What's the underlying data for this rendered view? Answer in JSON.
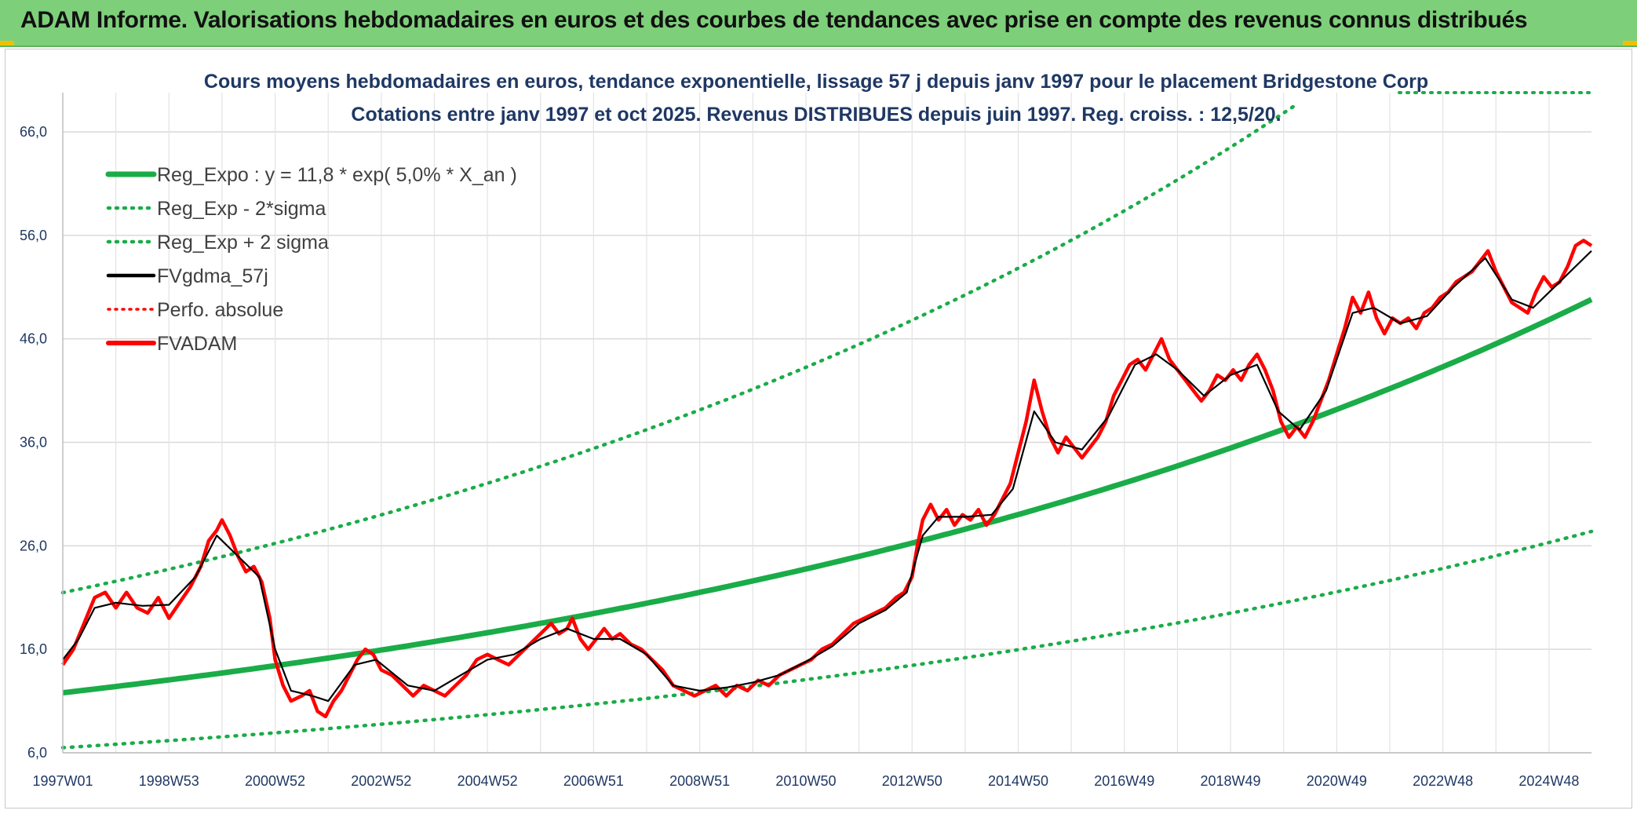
{
  "banner": {
    "title": "ADAM Informe. Valorisations hebdomadaires en euros et des courbes de tendances avec prise en compte des revenus connus distribués"
  },
  "colors": {
    "banner_bg": "#7ecf7a",
    "reg_green": "#1aac48",
    "fvadam_red": "#ff0000",
    "fvgdma_black": "#000000",
    "title_blue": "#1f3864"
  },
  "chart_data": {
    "type": "line",
    "title": "Cours moyens hebdomadaires en euros, tendance exponentielle, lissage 57 j depuis janv 1997 pour le placement Bridgestone Corp",
    "subtitle": "Cotations entre janv 1997 et oct 2025. Revenus DISTRIBUES depuis juin 1997. Reg. croiss. : 12,5/20.",
    "xlabel": "",
    "ylabel": "",
    "ylim": [
      6,
      66
    ],
    "xlim": [
      1997.0,
      2025.8
    ],
    "yticks": [
      "6,0",
      "16,0",
      "26,0",
      "36,0",
      "46,0",
      "56,0",
      "66,0"
    ],
    "xticks": [
      "1997W01",
      "1998W53",
      "2000W52",
      "2002W52",
      "2004W52",
      "2006W51",
      "2008W51",
      "2010W50",
      "2012W50",
      "2014W50",
      "2016W49",
      "2018W49",
      "2020W49",
      "2022W48",
      "2024W48"
    ],
    "grid": true,
    "legend_position": "top-left",
    "regression": {
      "a": 11.8,
      "b": 0.05,
      "minus_2_sigma_factor": 0.55,
      "plus_2_sigma_factor": 1.82
    },
    "series": [
      {
        "name": "Reg_Expo : y = 11,8 * exp( 5,0% *  X_an )",
        "style": "solid-thick",
        "color": "#1aac48"
      },
      {
        "name": "Reg_Exp - 2*sigma",
        "style": "dotted",
        "color": "#1aac48"
      },
      {
        "name": "Reg_Exp + 2 sigma",
        "style": "dotted",
        "color": "#1aac48"
      },
      {
        "name": "FVgdma_57j",
        "style": "solid",
        "color": "#000000"
      },
      {
        "name": "Perfo. absolue",
        "style": "dotted",
        "color": "#ff0000"
      },
      {
        "name": "FVADAM",
        "style": "solid-thick",
        "color": "#ff0000"
      }
    ],
    "fvadam_points": [
      [
        1997.0,
        14.5
      ],
      [
        1997.2,
        16.0
      ],
      [
        1997.4,
        18.5
      ],
      [
        1997.6,
        21.0
      ],
      [
        1997.8,
        21.5
      ],
      [
        1998.0,
        20.0
      ],
      [
        1998.2,
        21.5
      ],
      [
        1998.4,
        20.0
      ],
      [
        1998.6,
        19.5
      ],
      [
        1998.8,
        21.0
      ],
      [
        1999.0,
        19.0
      ],
      [
        1999.2,
        20.5
      ],
      [
        1999.4,
        22.0
      ],
      [
        1999.6,
        24.0
      ],
      [
        1999.75,
        26.5
      ],
      [
        1999.9,
        27.5
      ],
      [
        2000.0,
        28.5
      ],
      [
        2000.15,
        27.0
      ],
      [
        2000.3,
        25.0
      ],
      [
        2000.45,
        23.5
      ],
      [
        2000.6,
        24.0
      ],
      [
        2000.75,
        22.5
      ],
      [
        2000.9,
        19.0
      ],
      [
        2001.0,
        15.0
      ],
      [
        2001.15,
        12.5
      ],
      [
        2001.3,
        11.0
      ],
      [
        2001.5,
        11.5
      ],
      [
        2001.65,
        12.0
      ],
      [
        2001.8,
        10.0
      ],
      [
        2001.95,
        9.5
      ],
      [
        2002.1,
        11.0
      ],
      [
        2002.25,
        12.0
      ],
      [
        2002.4,
        13.5
      ],
      [
        2002.55,
        15.0
      ],
      [
        2002.7,
        16.0
      ],
      [
        2002.85,
        15.5
      ],
      [
        2003.0,
        14.0
      ],
      [
        2003.2,
        13.5
      ],
      [
        2003.4,
        12.5
      ],
      [
        2003.6,
        11.5
      ],
      [
        2003.8,
        12.5
      ],
      [
        2004.0,
        12.0
      ],
      [
        2004.2,
        11.5
      ],
      [
        2004.4,
        12.5
      ],
      [
        2004.6,
        13.5
      ],
      [
        2004.8,
        15.0
      ],
      [
        2005.0,
        15.5
      ],
      [
        2005.2,
        15.0
      ],
      [
        2005.4,
        14.5
      ],
      [
        2005.6,
        15.5
      ],
      [
        2005.8,
        16.5
      ],
      [
        2006.0,
        17.5
      ],
      [
        2006.2,
        18.5
      ],
      [
        2006.35,
        17.5
      ],
      [
        2006.5,
        18.0
      ],
      [
        2006.6,
        19.0
      ],
      [
        2006.75,
        17.0
      ],
      [
        2006.9,
        16.0
      ],
      [
        2007.05,
        17.0
      ],
      [
        2007.2,
        18.0
      ],
      [
        2007.35,
        17.0
      ],
      [
        2007.5,
        17.5
      ],
      [
        2007.7,
        16.5
      ],
      [
        2007.9,
        16.0
      ],
      [
        2008.1,
        15.0
      ],
      [
        2008.3,
        14.0
      ],
      [
        2008.5,
        12.5
      ],
      [
        2008.7,
        12.0
      ],
      [
        2008.9,
        11.5
      ],
      [
        2009.1,
        12.0
      ],
      [
        2009.3,
        12.5
      ],
      [
        2009.5,
        11.5
      ],
      [
        2009.7,
        12.5
      ],
      [
        2009.9,
        12.0
      ],
      [
        2010.1,
        13.0
      ],
      [
        2010.3,
        12.5
      ],
      [
        2010.5,
        13.5
      ],
      [
        2010.7,
        14.0
      ],
      [
        2010.9,
        14.5
      ],
      [
        2011.1,
        15.0
      ],
      [
        2011.3,
        16.0
      ],
      [
        2011.5,
        16.5
      ],
      [
        2011.7,
        17.5
      ],
      [
        2011.9,
        18.5
      ],
      [
        2012.1,
        19.0
      ],
      [
        2012.3,
        19.5
      ],
      [
        2012.5,
        20.0
      ],
      [
        2012.7,
        21.0
      ],
      [
        2012.85,
        21.5
      ],
      [
        2013.0,
        23.0
      ],
      [
        2013.1,
        26.0
      ],
      [
        2013.2,
        28.5
      ],
      [
        2013.35,
        30.0
      ],
      [
        2013.5,
        28.5
      ],
      [
        2013.65,
        29.5
      ],
      [
        2013.8,
        28.0
      ],
      [
        2013.95,
        29.0
      ],
      [
        2014.1,
        28.5
      ],
      [
        2014.25,
        29.5
      ],
      [
        2014.4,
        28.0
      ],
      [
        2014.55,
        29.0
      ],
      [
        2014.7,
        30.5
      ],
      [
        2014.85,
        32.0
      ],
      [
        2015.0,
        35.0
      ],
      [
        2015.15,
        38.0
      ],
      [
        2015.3,
        42.0
      ],
      [
        2015.45,
        39.0
      ],
      [
        2015.6,
        36.5
      ],
      [
        2015.75,
        35.0
      ],
      [
        2015.9,
        36.5
      ],
      [
        2016.05,
        35.5
      ],
      [
        2016.2,
        34.5
      ],
      [
        2016.35,
        35.5
      ],
      [
        2016.5,
        36.5
      ],
      [
        2016.65,
        38.0
      ],
      [
        2016.8,
        40.5
      ],
      [
        2016.95,
        42.0
      ],
      [
        2017.1,
        43.5
      ],
      [
        2017.25,
        44.0
      ],
      [
        2017.4,
        43.0
      ],
      [
        2017.55,
        44.5
      ],
      [
        2017.7,
        46.0
      ],
      [
        2017.85,
        44.0
      ],
      [
        2018.0,
        43.0
      ],
      [
        2018.15,
        42.0
      ],
      [
        2018.3,
        41.0
      ],
      [
        2018.45,
        40.0
      ],
      [
        2018.6,
        41.0
      ],
      [
        2018.75,
        42.5
      ],
      [
        2018.9,
        42.0
      ],
      [
        2019.05,
        43.0
      ],
      [
        2019.2,
        42.0
      ],
      [
        2019.35,
        43.5
      ],
      [
        2019.5,
        44.5
      ],
      [
        2019.65,
        43.0
      ],
      [
        2019.8,
        41.0
      ],
      [
        2019.95,
        38.0
      ],
      [
        2020.1,
        36.5
      ],
      [
        2020.25,
        37.5
      ],
      [
        2020.4,
        36.5
      ],
      [
        2020.55,
        38.0
      ],
      [
        2020.7,
        40.0
      ],
      [
        2020.85,
        42.0
      ],
      [
        2021.0,
        44.5
      ],
      [
        2021.15,
        47.0
      ],
      [
        2021.3,
        50.0
      ],
      [
        2021.45,
        48.5
      ],
      [
        2021.6,
        50.5
      ],
      [
        2021.75,
        48.0
      ],
      [
        2021.9,
        46.5
      ],
      [
        2022.05,
        48.0
      ],
      [
        2022.2,
        47.5
      ],
      [
        2022.35,
        48.0
      ],
      [
        2022.5,
        47.0
      ],
      [
        2022.65,
        48.5
      ],
      [
        2022.8,
        49.0
      ],
      [
        2022.95,
        50.0
      ],
      [
        2023.1,
        50.5
      ],
      [
        2023.25,
        51.5
      ],
      [
        2023.4,
        52.0
      ],
      [
        2023.55,
        52.5
      ],
      [
        2023.7,
        53.5
      ],
      [
        2023.85,
        54.5
      ],
      [
        2024.0,
        52.5
      ],
      [
        2024.15,
        51.0
      ],
      [
        2024.3,
        49.5
      ],
      [
        2024.45,
        49.0
      ],
      [
        2024.6,
        48.5
      ],
      [
        2024.75,
        50.5
      ],
      [
        2024.9,
        52.0
      ],
      [
        2025.05,
        51.0
      ],
      [
        2025.2,
        51.5
      ],
      [
        2025.35,
        53.0
      ],
      [
        2025.5,
        55.0
      ],
      [
        2025.65,
        55.5
      ],
      [
        2025.8,
        55.0
      ]
    ],
    "fvgdma_points": [
      [
        1997.0,
        15.0
      ],
      [
        1997.3,
        17.0
      ],
      [
        1997.6,
        20.0
      ],
      [
        1998.0,
        20.5
      ],
      [
        1998.5,
        20.2
      ],
      [
        1999.0,
        20.3
      ],
      [
        1999.5,
        23.0
      ],
      [
        1999.9,
        27.0
      ],
      [
        2000.3,
        25.0
      ],
      [
        2000.7,
        23.0
      ],
      [
        2001.0,
        16.0
      ],
      [
        2001.3,
        12.0
      ],
      [
        2001.7,
        11.5
      ],
      [
        2002.0,
        11.0
      ],
      [
        2002.5,
        14.5
      ],
      [
        2002.9,
        15.0
      ],
      [
        2003.5,
        12.5
      ],
      [
        2004.0,
        12.0
      ],
      [
        2004.5,
        13.5
      ],
      [
        2005.0,
        15.0
      ],
      [
        2005.5,
        15.5
      ],
      [
        2006.0,
        17.0
      ],
      [
        2006.5,
        18.0
      ],
      [
        2007.0,
        17.0
      ],
      [
        2007.5,
        17.0
      ],
      [
        2008.0,
        15.5
      ],
      [
        2008.5,
        12.5
      ],
      [
        2009.0,
        12.0
      ],
      [
        2009.5,
        12.3
      ],
      [
        2010.0,
        12.8
      ],
      [
        2010.5,
        13.5
      ],
      [
        2011.0,
        14.8
      ],
      [
        2011.5,
        16.3
      ],
      [
        2012.0,
        18.5
      ],
      [
        2012.5,
        19.8
      ],
      [
        2012.9,
        21.5
      ],
      [
        2013.2,
        27.0
      ],
      [
        2013.5,
        28.8
      ],
      [
        2014.0,
        28.8
      ],
      [
        2014.5,
        29.0
      ],
      [
        2014.9,
        31.5
      ],
      [
        2015.3,
        39.0
      ],
      [
        2015.7,
        36.0
      ],
      [
        2016.2,
        35.3
      ],
      [
        2016.7,
        38.5
      ],
      [
        2017.2,
        43.5
      ],
      [
        2017.6,
        44.5
      ],
      [
        2018.0,
        43.0
      ],
      [
        2018.5,
        40.5
      ],
      [
        2019.0,
        42.5
      ],
      [
        2019.5,
        43.5
      ],
      [
        2019.9,
        39.0
      ],
      [
        2020.3,
        37.2
      ],
      [
        2020.8,
        41.0
      ],
      [
        2021.3,
        48.5
      ],
      [
        2021.7,
        49.0
      ],
      [
        2022.2,
        47.5
      ],
      [
        2022.7,
        48.2
      ],
      [
        2023.2,
        51.0
      ],
      [
        2023.8,
        53.8
      ],
      [
        2024.3,
        49.8
      ],
      [
        2024.7,
        49.0
      ],
      [
        2025.2,
        51.5
      ],
      [
        2025.8,
        54.5
      ]
    ]
  }
}
